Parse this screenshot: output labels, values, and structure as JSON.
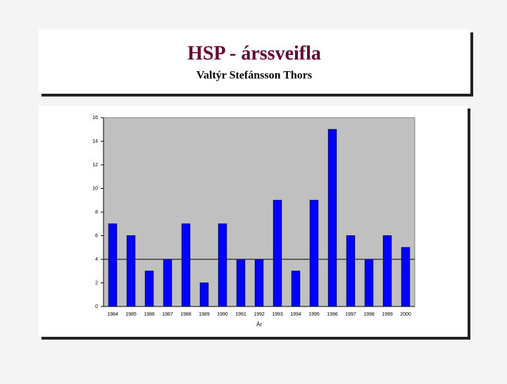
{
  "chart_data": {
    "type": "bar",
    "title": "HSP - árssveifla",
    "subtitle": "Valtýr Stefánsson Thors",
    "x_label": "Ár",
    "categories": [
      "1984",
      "1985",
      "1986",
      "1987",
      "1988",
      "1989",
      "1990",
      "1991",
      "1992",
      "1993",
      "1994",
      "1995",
      "1996",
      "1997",
      "1998",
      "1999",
      "2000"
    ],
    "values": [
      7,
      6,
      3,
      4,
      7,
      2,
      7,
      4,
      4,
      9,
      3,
      9,
      15,
      6,
      4,
      6,
      5
    ],
    "color": "#0000ff",
    "ylim": [
      0,
      16
    ],
    "yticks": [
      0,
      2,
      4,
      6,
      8,
      10,
      12,
      14,
      16
    ],
    "reference_line": 4
  }
}
